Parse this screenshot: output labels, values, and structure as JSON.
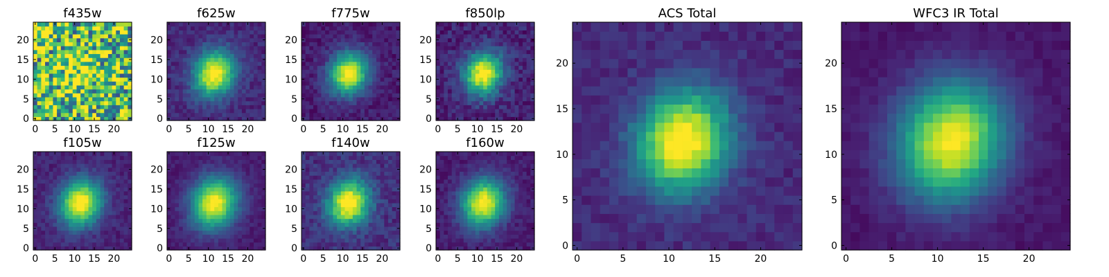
{
  "chart_data": [
    {
      "type": "heatmap",
      "title": "f435w",
      "xticks": [
        0,
        5,
        10,
        15,
        20
      ],
      "yticks": [
        0,
        5,
        10,
        15,
        20
      ],
      "xlim": [
        -0.5,
        24.5
      ],
      "ylim": [
        -0.5,
        24.5
      ],
      "grid": "off",
      "colormap": "viridis",
      "noise": 0.55,
      "peak_x": 11,
      "peak_y": 11,
      "sigma": 3.0,
      "peak_strength": 0.35,
      "background": 0.6
    },
    {
      "type": "heatmap",
      "title": "f625w",
      "xticks": [
        0,
        5,
        10,
        15,
        20
      ],
      "yticks": [
        0,
        5,
        10,
        15,
        20
      ],
      "xlim": [
        -0.5,
        24.5
      ],
      "ylim": [
        -0.5,
        24.5
      ],
      "grid": "off",
      "colormap": "viridis",
      "noise": 0.12,
      "peak_x": 11.5,
      "peak_y": 11.5,
      "sigma": 3.2,
      "peak_strength": 1.0,
      "background": 0.12
    },
    {
      "type": "heatmap",
      "title": "f775w",
      "xticks": [
        0,
        5,
        10,
        15,
        20
      ],
      "yticks": [
        0,
        5,
        10,
        15,
        20
      ],
      "xlim": [
        -0.5,
        24.5
      ],
      "ylim": [
        -0.5,
        24.5
      ],
      "grid": "off",
      "colormap": "viridis",
      "noise": 0.12,
      "peak_x": 11.5,
      "peak_y": 11.5,
      "sigma": 3.0,
      "peak_strength": 1.0,
      "background": 0.08
    },
    {
      "type": "heatmap",
      "title": "f850lp",
      "xticks": [
        0,
        5,
        10,
        15,
        20
      ],
      "yticks": [
        0,
        5,
        10,
        15,
        20
      ],
      "xlim": [
        -0.5,
        24.5
      ],
      "ylim": [
        -0.5,
        24.5
      ],
      "grid": "off",
      "colormap": "viridis",
      "noise": 0.16,
      "peak_x": 11.5,
      "peak_y": 11.5,
      "sigma": 3.0,
      "peak_strength": 1.0,
      "background": 0.1
    },
    {
      "type": "heatmap",
      "title": "f105w",
      "xticks": [
        0,
        5,
        10,
        15,
        20
      ],
      "yticks": [
        0,
        5,
        10,
        15,
        20
      ],
      "xlim": [
        -0.5,
        24.5
      ],
      "ylim": [
        -0.5,
        24.5
      ],
      "grid": "off",
      "colormap": "viridis",
      "noise": 0.1,
      "peak_x": 11.5,
      "peak_y": 11.5,
      "sigma": 3.3,
      "peak_strength": 1.0,
      "background": 0.1
    },
    {
      "type": "heatmap",
      "title": "f125w",
      "xticks": [
        0,
        5,
        10,
        15,
        20
      ],
      "yticks": [
        0,
        5,
        10,
        15,
        20
      ],
      "xlim": [
        -0.5,
        24.5
      ],
      "ylim": [
        -0.5,
        24.5
      ],
      "grid": "off",
      "colormap": "viridis",
      "noise": 0.08,
      "peak_x": 11.5,
      "peak_y": 11.5,
      "sigma": 3.6,
      "peak_strength": 1.0,
      "background": 0.08
    },
    {
      "type": "heatmap",
      "title": "f140w",
      "xticks": [
        0,
        5,
        10,
        15,
        20
      ],
      "yticks": [
        0,
        5,
        10,
        15,
        20
      ],
      "xlim": [
        -0.5,
        24.5
      ],
      "ylim": [
        -0.5,
        24.5
      ],
      "grid": "off",
      "colormap": "viridis",
      "noise": 0.14,
      "peak_x": 11.5,
      "peak_y": 11.5,
      "sigma": 3.2,
      "peak_strength": 1.0,
      "background": 0.14
    },
    {
      "type": "heatmap",
      "title": "f160w",
      "xticks": [
        0,
        5,
        10,
        15,
        20
      ],
      "yticks": [
        0,
        5,
        10,
        15,
        20
      ],
      "xlim": [
        -0.5,
        24.5
      ],
      "ylim": [
        -0.5,
        24.5
      ],
      "grid": "off",
      "colormap": "viridis",
      "noise": 0.1,
      "peak_x": 11.5,
      "peak_y": 11.5,
      "sigma": 3.4,
      "peak_strength": 1.0,
      "background": 0.08
    },
    {
      "type": "heatmap",
      "title": "ACS Total",
      "xticks": [
        0,
        5,
        10,
        15,
        20
      ],
      "yticks": [
        0,
        5,
        10,
        15,
        20
      ],
      "xlim": [
        -0.5,
        24.5
      ],
      "ylim": [
        -0.5,
        24.5
      ],
      "grid": "off",
      "colormap": "viridis",
      "noise": 0.1,
      "peak_x": 11.5,
      "peak_y": 11.5,
      "sigma": 3.1,
      "peak_strength": 1.0,
      "background": 0.12
    },
    {
      "type": "heatmap",
      "title": "WFC3 IR Total",
      "xticks": [
        0,
        5,
        10,
        15,
        20
      ],
      "yticks": [
        0,
        5,
        10,
        15,
        20
      ],
      "xlim": [
        -0.5,
        24.5
      ],
      "ylim": [
        -0.5,
        24.5
      ],
      "grid": "off",
      "colormap": "viridis",
      "noise": 0.06,
      "peak_x": 11.5,
      "peak_y": 11.5,
      "sigma": 3.6,
      "peak_strength": 1.0,
      "background": 0.06
    }
  ]
}
